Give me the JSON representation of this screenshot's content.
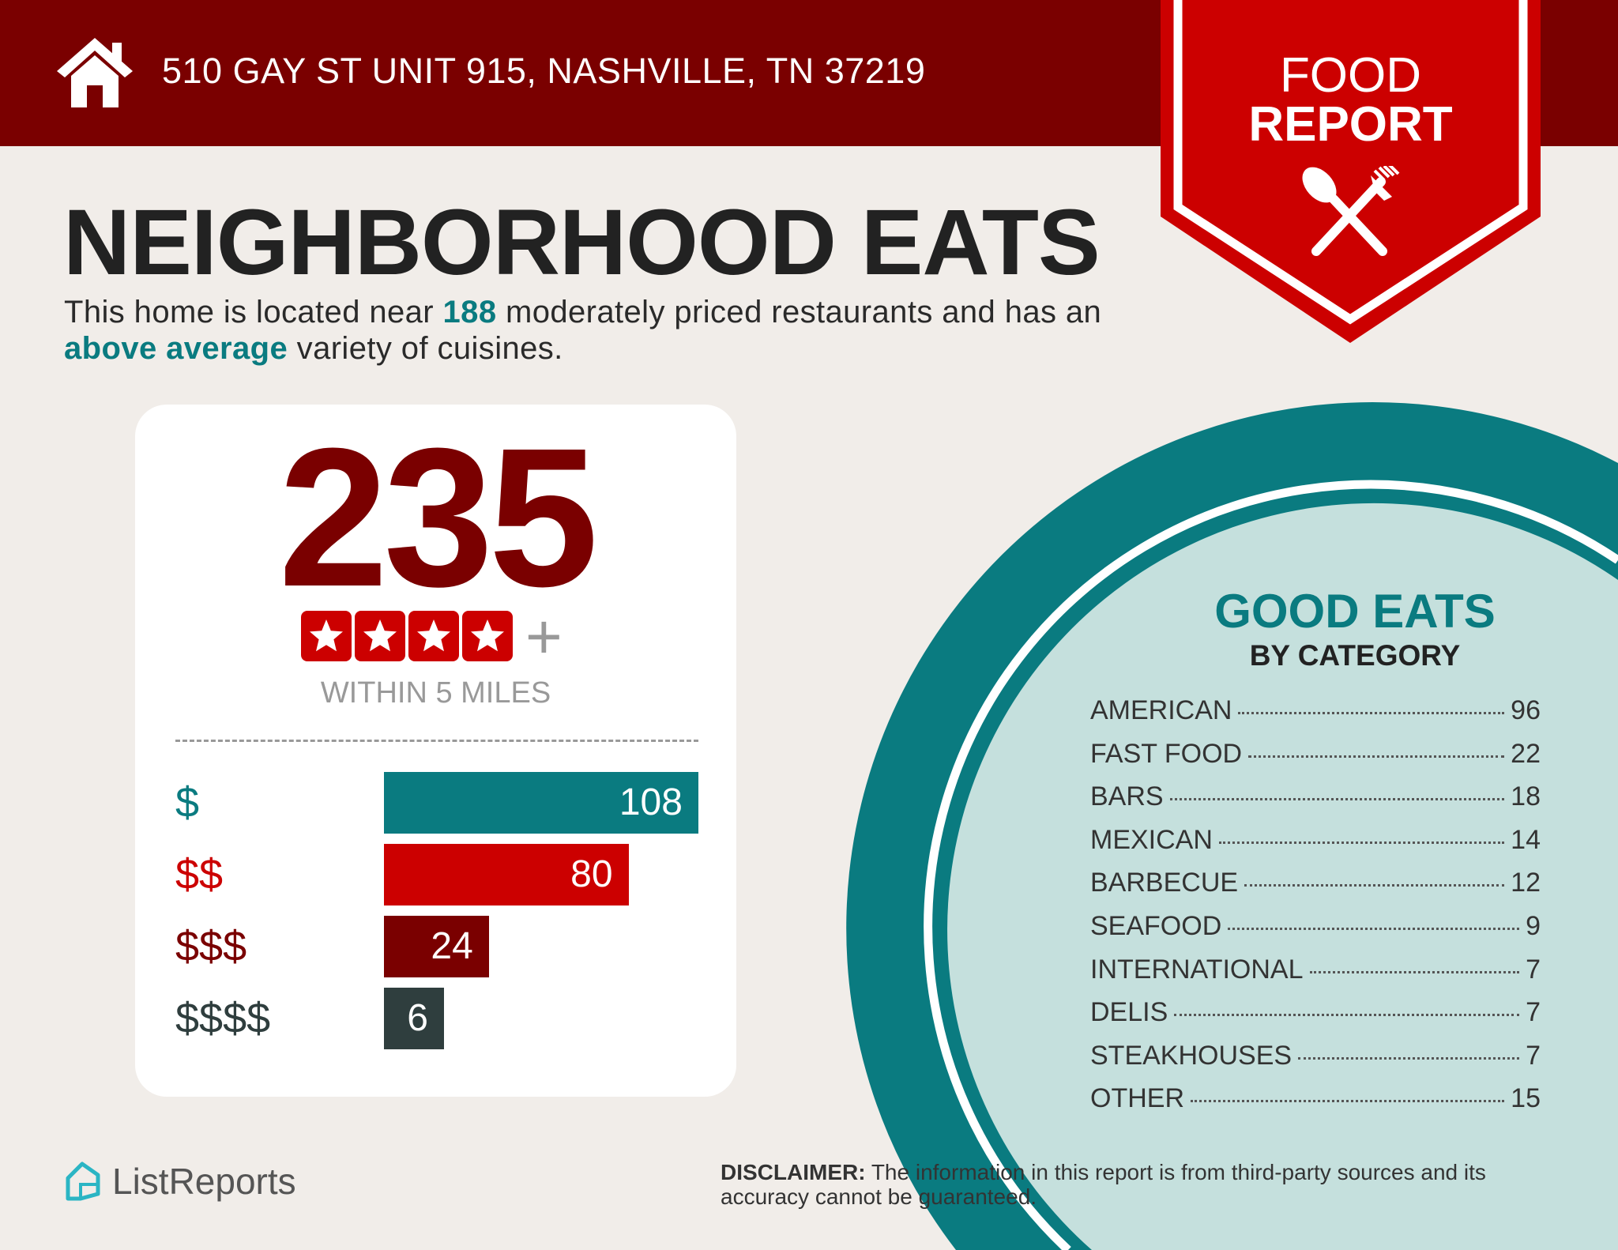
{
  "header": {
    "address": "510 GAY ST UNIT 915, NASHVILLE, TN 37219",
    "icon": "house-icon"
  },
  "badge": {
    "line1": "FOOD",
    "line2": "REPORT",
    "icon": "spoon-fork-icon"
  },
  "title": "NEIGHBORHOOD EATS",
  "subtitle": {
    "part1": "This home is located near ",
    "count": "188",
    "part2": " moderately priced restaurants and has an ",
    "variety": "above average",
    "part3": " variety of cuisines."
  },
  "summary": {
    "count": "235",
    "stars": 4,
    "plus": "+",
    "within": "WITHIN 5 MILES"
  },
  "price_levels": [
    {
      "label": "$",
      "value": 108,
      "color": "#0a7b80"
    },
    {
      "label": "$$",
      "value": 80,
      "color": "#cc0000"
    },
    {
      "label": "$$$",
      "value": 24,
      "color": "#7a0000"
    },
    {
      "label": "$$$$",
      "value": 6,
      "color": "#2f3e3e"
    }
  ],
  "categories": {
    "title": "GOOD EATS",
    "subtitle": "BY CATEGORY",
    "items": [
      {
        "name": "AMERICAN",
        "count": "96"
      },
      {
        "name": "FAST FOOD",
        "count": "22"
      },
      {
        "name": "BARS",
        "count": "18"
      },
      {
        "name": "MEXICAN",
        "count": "14"
      },
      {
        "name": "BARBECUE",
        "count": "12"
      },
      {
        "name": "SEAFOOD",
        "count": "9"
      },
      {
        "name": "INTERNATIONAL",
        "count": "7"
      },
      {
        "name": "DELIS",
        "count": "7"
      },
      {
        "name": "STEAKHOUSES",
        "count": "7"
      },
      {
        "name": "OTHER",
        "count": "15"
      }
    ]
  },
  "footer": {
    "logo": "ListReports",
    "disclaimer_label": "DISCLAIMER:",
    "disclaimer_text": " The information in this report is from third-party sources and its accuracy cannot be guaranteed."
  },
  "colors": {
    "header": "#7a0000",
    "badge": "#cc0000",
    "teal": "#0a7b80",
    "light_teal": "#c5e0dd",
    "background": "#f1ede9"
  }
}
